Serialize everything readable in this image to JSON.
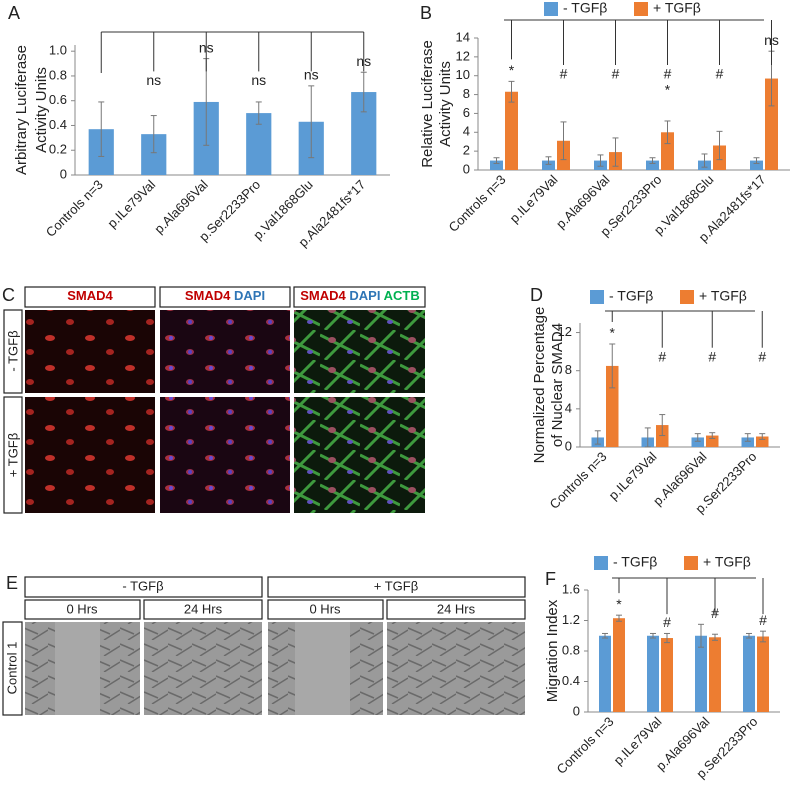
{
  "chart_data": [
    {
      "type": "bar",
      "panel": "A",
      "ylabel": [
        "Arbitrary Luciferase",
        "Activity Units"
      ],
      "categories": [
        "Controls n=3",
        "p.ILe79Val",
        "p.Ala696Val",
        "p.Ser2233Pro",
        "p.Val1868Glu",
        "p.Ala2481fs*17"
      ],
      "series": [
        {
          "color": "#5b9bd5",
          "values": [
            0.37,
            0.33,
            0.59,
            0.5,
            0.43,
            0.67
          ],
          "errors": [
            0.22,
            0.15,
            0.35,
            0.09,
            0.29,
            0.16
          ]
        }
      ],
      "annotations": [
        [],
        [
          "ns"
        ],
        [
          "ns"
        ],
        [
          "ns"
        ],
        [
          "ns"
        ],
        [
          "ns"
        ]
      ],
      "ylim": [
        0,
        1.05
      ],
      "yticks": [
        0,
        0.2,
        0.4,
        0.6,
        0.8,
        {
          "value": 1,
          "label": "1.0"
        }
      ],
      "grid": false
    },
    {
      "type": "bar",
      "panel": "B",
      "ylabel": [
        "Relative Luciferase",
        "Activity Units"
      ],
      "categories": [
        "Controls n=3",
        "p.ILe79Val",
        "p.Ala696Val",
        "p.Ser2233Pro",
        "p.Val1868Glu",
        "p.Ala2481fs*17"
      ],
      "series": [
        {
          "name": "- TGFβ",
          "color": "#5b9bd5",
          "values": [
            1,
            1,
            1,
            1,
            1,
            1
          ],
          "errors": [
            0.3,
            0.4,
            0.6,
            0.3,
            0.7,
            0.3
          ]
        },
        {
          "name": "+ TGFβ",
          "color": "#ed7d31",
          "values": [
            8.3,
            3.1,
            1.9,
            4.0,
            2.6,
            9.7
          ],
          "errors": [
            1.1,
            2.0,
            1.5,
            1.2,
            1.5,
            2.9
          ]
        }
      ],
      "annotations": [
        [
          "*"
        ],
        [
          "#"
        ],
        [
          "#"
        ],
        [
          "#",
          "*"
        ],
        [
          "#"
        ],
        [
          "ns"
        ]
      ],
      "ylim": [
        0,
        14
      ],
      "yticks": [
        0,
        2,
        4,
        6,
        8,
        10,
        12,
        14
      ],
      "grid": false
    },
    {
      "type": "bar",
      "panel": "D",
      "ylabel": [
        "Normalized Percentage",
        "of Nuclear SMAD4"
      ],
      "categories": [
        "Controls n=3",
        "p.ILe79Val",
        "p.Ala696Val",
        "p.Ser2233Pro"
      ],
      "series": [
        {
          "name": "- TGFβ",
          "color": "#5b9bd5",
          "values": [
            1,
            1,
            1,
            1
          ],
          "errors": [
            0.7,
            1.0,
            0.4,
            0.4
          ]
        },
        {
          "name": "+ TGFβ",
          "color": "#ed7d31",
          "values": [
            8.5,
            2.3,
            1.2,
            1.1
          ],
          "errors": [
            2.3,
            1.1,
            0.3,
            0.3
          ]
        }
      ],
      "annotations": [
        [
          "*"
        ],
        [
          "#"
        ],
        [
          "#"
        ],
        [
          "#"
        ]
      ],
      "ylim": [
        0,
        13
      ],
      "yticks": [
        0,
        4,
        8,
        12
      ],
      "grid": false
    },
    {
      "type": "bar",
      "panel": "F",
      "ylabel": [
        "Migration Index"
      ],
      "categories": [
        "Controls n=3",
        "p.ILe79Val",
        "p.Ala696Val",
        "p.Ser2233Pro"
      ],
      "series": [
        {
          "name": "- TGFβ",
          "color": "#5b9bd5",
          "values": [
            1.0,
            1.0,
            1.0,
            1.0
          ],
          "errors": [
            0.03,
            0.03,
            0.15,
            0.03
          ]
        },
        {
          "name": "+ TGFβ",
          "color": "#ed7d31",
          "values": [
            1.23,
            0.97,
            0.98,
            0.99
          ],
          "errors": [
            0.04,
            0.06,
            0.04,
            0.07
          ]
        }
      ],
      "annotations": [
        [
          "*"
        ],
        [
          "#"
        ],
        [
          "#"
        ],
        [
          "#"
        ]
      ],
      "ylim": [
        0,
        1.6
      ],
      "yticks": [
        0,
        0.4,
        0.8,
        1.2,
        1.6
      ],
      "grid": false
    }
  ],
  "panel_c": {
    "panel": "C",
    "columns": [
      [
        "SMAD4"
      ],
      [
        "SMAD4",
        "DAPI"
      ],
      [
        "SMAD4",
        "DAPI",
        "ACTB"
      ]
    ],
    "rows": [
      "- TGFβ",
      "+ TGFβ"
    ]
  },
  "panel_e": {
    "panel": "E",
    "conditions": [
      "- TGFβ",
      "+ TGFβ"
    ],
    "times": [
      "0 Hrs",
      "24 Hrs",
      "0 Hrs",
      "24 Hrs"
    ],
    "row": "Control 1"
  }
}
